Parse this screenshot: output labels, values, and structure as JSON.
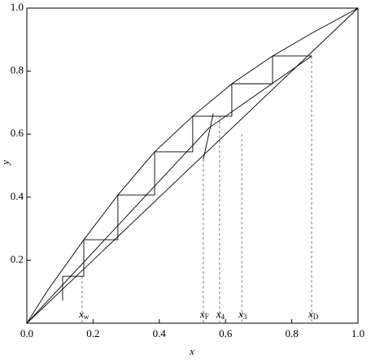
{
  "chart_data": {
    "type": "line",
    "xlabel": "x",
    "ylabel": "y",
    "xlim": [
      0,
      1
    ],
    "ylim": [
      0,
      1
    ],
    "xticks": [
      {
        "value": 0,
        "label": "0.0"
      },
      {
        "value": 0.2,
        "label": "0.2"
      },
      {
        "value": 0.4,
        "label": "0.4"
      },
      {
        "value": 0.6,
        "label": "0.6"
      },
      {
        "value": 0.8,
        "label": "0.8"
      },
      {
        "value": 1,
        "label": "1.0"
      }
    ],
    "yticks": [
      0.2,
      0.4,
      0.6,
      0.8,
      {
        "value": 1,
        "label": "1.0"
      }
    ],
    "color": "#000000",
    "series": [
      {
        "x": [
          0,
          0.06,
          0.172,
          0.275,
          0.386,
          0.501,
          0.619,
          0.742,
          0.86,
          1
        ],
        "values": [
          0,
          0.1,
          0.265,
          0.407,
          0.544,
          0.657,
          0.76,
          0.848,
          0.92,
          1
        ]
      },
      {
        "x": [
          0,
          1
        ],
        "values": [
          0,
          1
        ]
      },
      {
        "x": [
          0,
          0.55,
          0.86
        ],
        "values": [
          0,
          0.62,
          0.848
        ]
      },
      {
        "x": [
          0.533,
          0.563
        ],
        "values": [
          0.52,
          0.665
        ]
      },
      {
        "x": [
          0.108,
          0.108,
          0.172,
          0.172,
          0.275,
          0.275,
          0.386,
          0.386,
          0.501,
          0.501,
          0.619,
          0.619,
          0.742,
          0.742,
          0.86
        ],
        "values": [
          0.072,
          0.149,
          0.149,
          0.265,
          0.265,
          0.407,
          0.407,
          0.544,
          0.544,
          0.657,
          0.657,
          0.76,
          0.76,
          0.848,
          0.848
        ]
      }
    ],
    "markers": [
      {
        "label": "x",
        "sub": "w",
        "x": 0.167,
        "y": 0.149
      },
      {
        "label": "x",
        "sub": "F",
        "x": 0.533,
        "y": 0.52
      },
      {
        "label": "x",
        "sub": "4",
        "x": 0.582,
        "y": 0.657
      },
      {
        "label": "x",
        "sub": "3",
        "x": 0.649,
        "y": 0.6
      },
      {
        "label": "x",
        "sub": "D",
        "x": 0.86,
        "y": 0.848
      }
    ]
  }
}
